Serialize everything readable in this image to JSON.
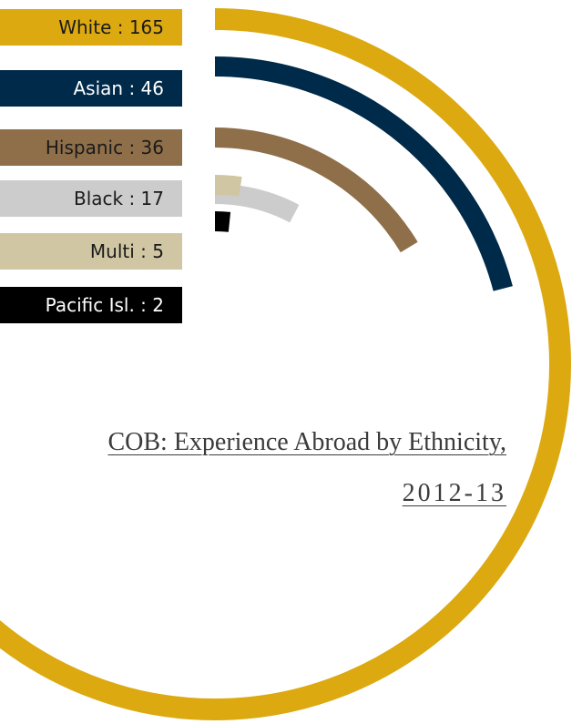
{
  "chart_data": {
    "type": "radial-bar",
    "title": "COB: Experience Abroad by Ethnicity,",
    "subtitle": "2012-13",
    "max_value": 165,
    "series": [
      {
        "label": "White : 165",
        "value": 165,
        "color": "#dca911",
        "text_color": "#1a1a1a"
      },
      {
        "label": "Asian : 46",
        "value": 46,
        "color": "#002a4a",
        "text_color": "#ffffff"
      },
      {
        "label": "Hispanic : 36",
        "value": 36,
        "color": "#8f6f4a",
        "text_color": "#1a1a1a"
      },
      {
        "label": "Black : 17",
        "value": 17,
        "color": "#cccccc",
        "text_color": "#1a1a1a"
      },
      {
        "label": "Multi : 5",
        "value": 5,
        "color": "#d1c6a3",
        "text_color": "#1a1a1a"
      },
      {
        "label": "Pacific Isl. : 2",
        "value": 2,
        "color": "#000000",
        "text_color": "#ffffff"
      }
    ]
  }
}
